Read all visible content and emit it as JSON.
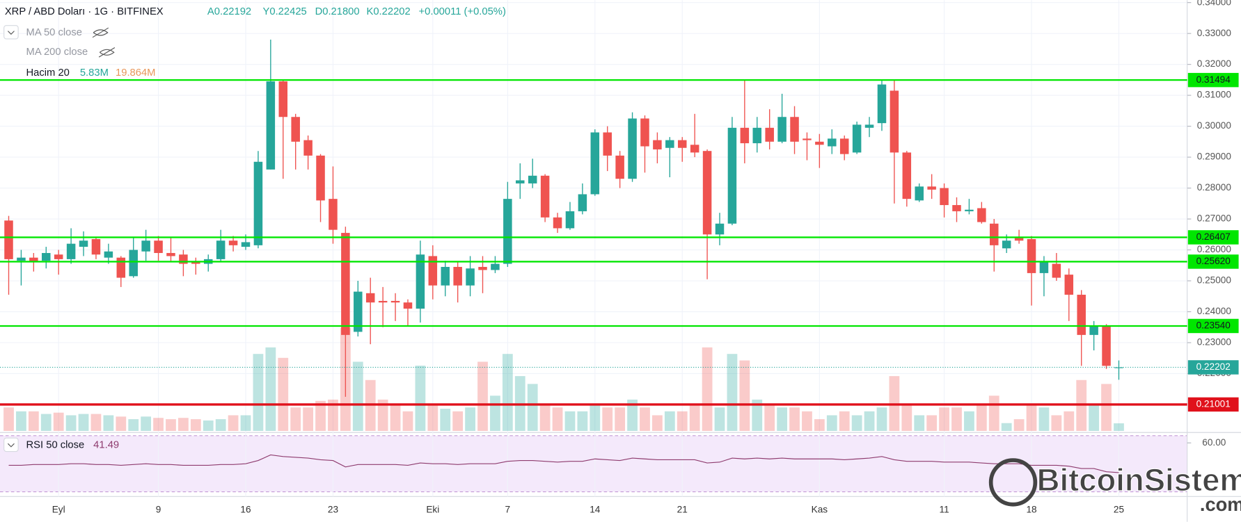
{
  "chart_data": {
    "type": "candlestick",
    "title": "XRP / ABD Doları · 1G · BITFINEX",
    "ohlc_readout": [
      "A0.22192",
      "Y0.22425",
      "D0.21800",
      "K0.22202"
    ],
    "change": "+0.00011 (+0.05%)",
    "indicators": [
      "MA 50 close",
      "MA 200 close"
    ],
    "up_color": "#26a69a",
    "down_color": "#ef5350",
    "categories": [
      null,
      null,
      null,
      null,
      "Eyl",
      null,
      null,
      null,
      null,
      null,
      null,
      null,
      "9",
      null,
      null,
      null,
      null,
      null,
      null,
      "16",
      null,
      null,
      null,
      null,
      null,
      null,
      "23",
      null,
      null,
      null,
      null,
      null,
      null,
      null,
      "Eki",
      null,
      null,
      null,
      null,
      null,
      "7",
      null,
      null,
      null,
      null,
      null,
      null,
      "14",
      null,
      null,
      null,
      null,
      null,
      null,
      "21",
      null,
      null,
      null,
      null,
      null,
      null,
      null,
      null,
      null,
      null,
      "Kas",
      null,
      null,
      null,
      null,
      null,
      null,
      null,
      null,
      null,
      "11",
      null,
      null,
      null,
      null,
      null,
      null,
      "18",
      null,
      null,
      null,
      null,
      null,
      null,
      "25"
    ],
    "candles": {
      "open": [
        0.2695,
        0.2565,
        0.2575,
        0.2565,
        0.2585,
        0.257,
        0.261,
        0.2635,
        0.2575,
        0.2575,
        0.2515,
        0.2595,
        0.263,
        0.259,
        0.2585,
        0.256,
        0.2555,
        0.257,
        0.263,
        0.261,
        0.2615,
        0.286,
        0.3145,
        0.303,
        0.2955,
        0.2905,
        0.2765,
        0.2655,
        0.2335,
        0.246,
        0.2435,
        0.2435,
        0.243,
        0.241,
        0.258,
        0.2485,
        0.2545,
        0.2485,
        0.2545,
        0.2535,
        0.2555,
        0.2815,
        0.2815,
        0.284,
        0.2705,
        0.267,
        0.2725,
        0.278,
        0.298,
        0.2905,
        0.283,
        0.3025,
        0.2955,
        0.293,
        0.2955,
        0.294,
        0.292,
        0.265,
        0.2685,
        0.2995,
        0.2945,
        0.2995,
        0.295,
        0.303,
        0.296,
        0.295,
        0.2935,
        0.296,
        0.2915,
        0.2995,
        0.301,
        0.3115,
        0.2915,
        0.276,
        0.2805,
        0.28,
        0.2745,
        0.2725,
        0.2735,
        0.2685,
        0.2605,
        0.264,
        0.2635,
        0.2525,
        0.2555,
        0.252,
        0.2455,
        0.2325,
        0.2355,
        0.22192
      ],
      "high": [
        0.271,
        0.26,
        0.259,
        0.261,
        0.26,
        0.267,
        0.266,
        0.264,
        0.262,
        0.258,
        0.264,
        0.2665,
        0.2645,
        0.264,
        0.26,
        0.2575,
        0.2585,
        0.2665,
        0.2645,
        0.265,
        0.292,
        0.328,
        0.315,
        0.304,
        0.297,
        0.291,
        0.287,
        0.2675,
        0.25,
        0.251,
        0.248,
        0.246,
        0.244,
        0.263,
        0.2615,
        0.2565,
        0.256,
        0.258,
        0.258,
        0.258,
        0.282,
        0.288,
        0.2895,
        0.2845,
        0.272,
        0.2755,
        0.2815,
        0.299,
        0.3,
        0.292,
        0.3045,
        0.3035,
        0.298,
        0.2965,
        0.2965,
        0.304,
        0.2925,
        0.272,
        0.303,
        0.315,
        0.303,
        0.3055,
        0.3105,
        0.3065,
        0.298,
        0.2975,
        0.299,
        0.297,
        0.3015,
        0.303,
        0.315,
        0.315,
        0.292,
        0.2815,
        0.2845,
        0.2815,
        0.277,
        0.2765,
        0.2755,
        0.27,
        0.265,
        0.2665,
        0.2645,
        0.258,
        0.259,
        0.254,
        0.247,
        0.237,
        0.236,
        0.22425
      ],
      "low": [
        0.2455,
        0.2485,
        0.253,
        0.254,
        0.252,
        0.2555,
        0.258,
        0.257,
        0.2555,
        0.248,
        0.251,
        0.2565,
        0.2565,
        0.256,
        0.2515,
        0.252,
        0.253,
        0.256,
        0.2595,
        0.26,
        0.2605,
        0.286,
        0.283,
        0.286,
        0.286,
        0.269,
        0.262,
        0.2125,
        0.232,
        0.2295,
        0.235,
        0.237,
        0.2355,
        0.2365,
        0.244,
        0.245,
        0.243,
        0.245,
        0.246,
        0.2525,
        0.2545,
        0.2765,
        0.28,
        0.269,
        0.2655,
        0.2665,
        0.2715,
        0.2775,
        0.2855,
        0.28,
        0.282,
        0.285,
        0.288,
        0.2835,
        0.2885,
        0.29,
        0.2505,
        0.2615,
        0.268,
        0.288,
        0.2915,
        0.2925,
        0.2945,
        0.291,
        0.289,
        0.2865,
        0.291,
        0.289,
        0.291,
        0.2965,
        0.2985,
        0.275,
        0.274,
        0.2755,
        0.2765,
        0.2705,
        0.269,
        0.2715,
        0.2685,
        0.253,
        0.259,
        0.262,
        0.242,
        0.245,
        0.25,
        0.237,
        0.2225,
        0.2275,
        0.2215,
        0.218
      ],
      "close": [
        0.257,
        0.2575,
        0.256,
        0.259,
        0.257,
        0.262,
        0.263,
        0.2585,
        0.2595,
        0.251,
        0.26,
        0.263,
        0.259,
        0.258,
        0.2555,
        0.2555,
        0.257,
        0.263,
        0.2615,
        0.2625,
        0.2885,
        0.3145,
        0.303,
        0.295,
        0.2905,
        0.276,
        0.2665,
        0.2325,
        0.2465,
        0.243,
        0.243,
        0.243,
        0.241,
        0.2585,
        0.2485,
        0.2545,
        0.2485,
        0.254,
        0.2535,
        0.2555,
        0.2765,
        0.2825,
        0.284,
        0.2705,
        0.267,
        0.2725,
        0.278,
        0.298,
        0.2905,
        0.283,
        0.3025,
        0.2935,
        0.2925,
        0.2955,
        0.293,
        0.2915,
        0.265,
        0.2685,
        0.2995,
        0.2945,
        0.2995,
        0.295,
        0.303,
        0.295,
        0.2955,
        0.294,
        0.296,
        0.291,
        0.3005,
        0.3005,
        0.3135,
        0.2915,
        0.2765,
        0.2805,
        0.2795,
        0.2745,
        0.2725,
        0.273,
        0.269,
        0.2615,
        0.263,
        0.263,
        0.2525,
        0.256,
        0.251,
        0.2455,
        0.2325,
        0.2355,
        0.2225,
        0.22202
      ]
    },
    "ylim": [
      0.20145,
      0.34077
    ],
    "yticks": [
      {
        "value": 0.22,
        "label": "0.22000"
      },
      {
        "value": 0.23,
        "label": "0.23000"
      },
      {
        "value": 0.24,
        "label": "0.24000"
      },
      {
        "value": 0.25,
        "label": "0.25000"
      },
      {
        "value": 0.26,
        "label": "0.26000"
      },
      {
        "value": 0.27,
        "label": "0.27000"
      },
      {
        "value": 0.28,
        "label": "0.28000"
      },
      {
        "value": 0.29,
        "label": "0.29000"
      },
      {
        "value": 0.3,
        "label": "0.30000"
      },
      {
        "value": 0.31,
        "label": "0.31000"
      },
      {
        "value": 0.32,
        "label": "0.32000"
      },
      {
        "value": 0.33,
        "label": "0.33000"
      },
      {
        "value": 0.34,
        "label": "0.34000"
      }
    ],
    "levels": [
      {
        "value": 0.31494,
        "label": "0.31494",
        "color": "#00e600"
      },
      {
        "value": 0.26407,
        "label": "0.26407",
        "color": "#00e600"
      },
      {
        "value": 0.2562,
        "label": "0.25620",
        "color": "#00e600"
      },
      {
        "value": 0.2354,
        "label": "0.23540",
        "color": "#00e600"
      },
      {
        "value": 0.21001,
        "label": "0.21001",
        "color": "#e0111b"
      }
    ],
    "last_price": {
      "value": 0.22202,
      "label": "0.22202",
      "color": "#26a69a"
    },
    "volume": {
      "name": "Hacim 20",
      "label": "5.83M",
      "ma_label": "19.864M",
      "ma_color": "#e8965a",
      "ylim": [
        0,
        330
      ],
      "values": [
        18,
        15,
        15,
        13,
        14,
        12,
        13,
        13,
        12,
        11,
        9,
        11,
        10,
        9,
        10,
        9,
        8,
        9,
        12,
        12,
        59,
        64,
        56,
        18,
        18,
        23,
        24,
        79,
        53,
        39,
        24,
        21,
        15,
        50,
        21,
        17,
        15,
        18,
        53,
        27,
        59,
        42,
        36,
        21,
        18,
        15,
        15,
        21,
        18,
        18,
        24,
        18,
        12,
        15,
        15,
        21,
        64,
        18,
        59,
        54,
        24,
        21,
        18,
        18,
        15,
        9,
        12,
        15,
        12,
        15,
        18,
        42,
        21,
        12,
        12,
        18,
        18,
        15,
        21,
        27,
        6,
        9,
        21,
        18,
        12,
        15,
        39,
        21,
        36,
        5.83
      ]
    },
    "rsi": {
      "name": "RSI 50 close",
      "label": "41.49",
      "color": "#8e3b6e",
      "ylim": [
        29.5,
        64.5
      ],
      "yticks": [
        {
          "value": 60,
          "label": "60.00"
        }
      ],
      "values": [
        46,
        46,
        46.5,
        46.5,
        46.5,
        47,
        47,
        46.5,
        46.5,
        46,
        46.5,
        47,
        46.5,
        46.5,
        46,
        46,
        46,
        46.5,
        46.5,
        47,
        49,
        52.5,
        51.5,
        51,
        50.5,
        49.5,
        49,
        45,
        46.5,
        46.5,
        46.5,
        46.5,
        46,
        47.5,
        47,
        47,
        46.5,
        47,
        47,
        47,
        48.5,
        49,
        49,
        48.5,
        48,
        48.5,
        48.5,
        50,
        49.5,
        49,
        50.5,
        50,
        49.5,
        49.5,
        49.5,
        49.5,
        47.5,
        48,
        50.5,
        50,
        50.5,
        50,
        50.5,
        50,
        50,
        50,
        50,
        49.5,
        50,
        50.5,
        51.5,
        49.5,
        48.5,
        48.5,
        48.5,
        48,
        48,
        48,
        47.5,
        47,
        47,
        47,
        46,
        46,
        46,
        45.5,
        44,
        44,
        42,
        41.49
      ]
    },
    "watermark": [
      "BitcoinSistemi",
      ".com"
    ]
  }
}
